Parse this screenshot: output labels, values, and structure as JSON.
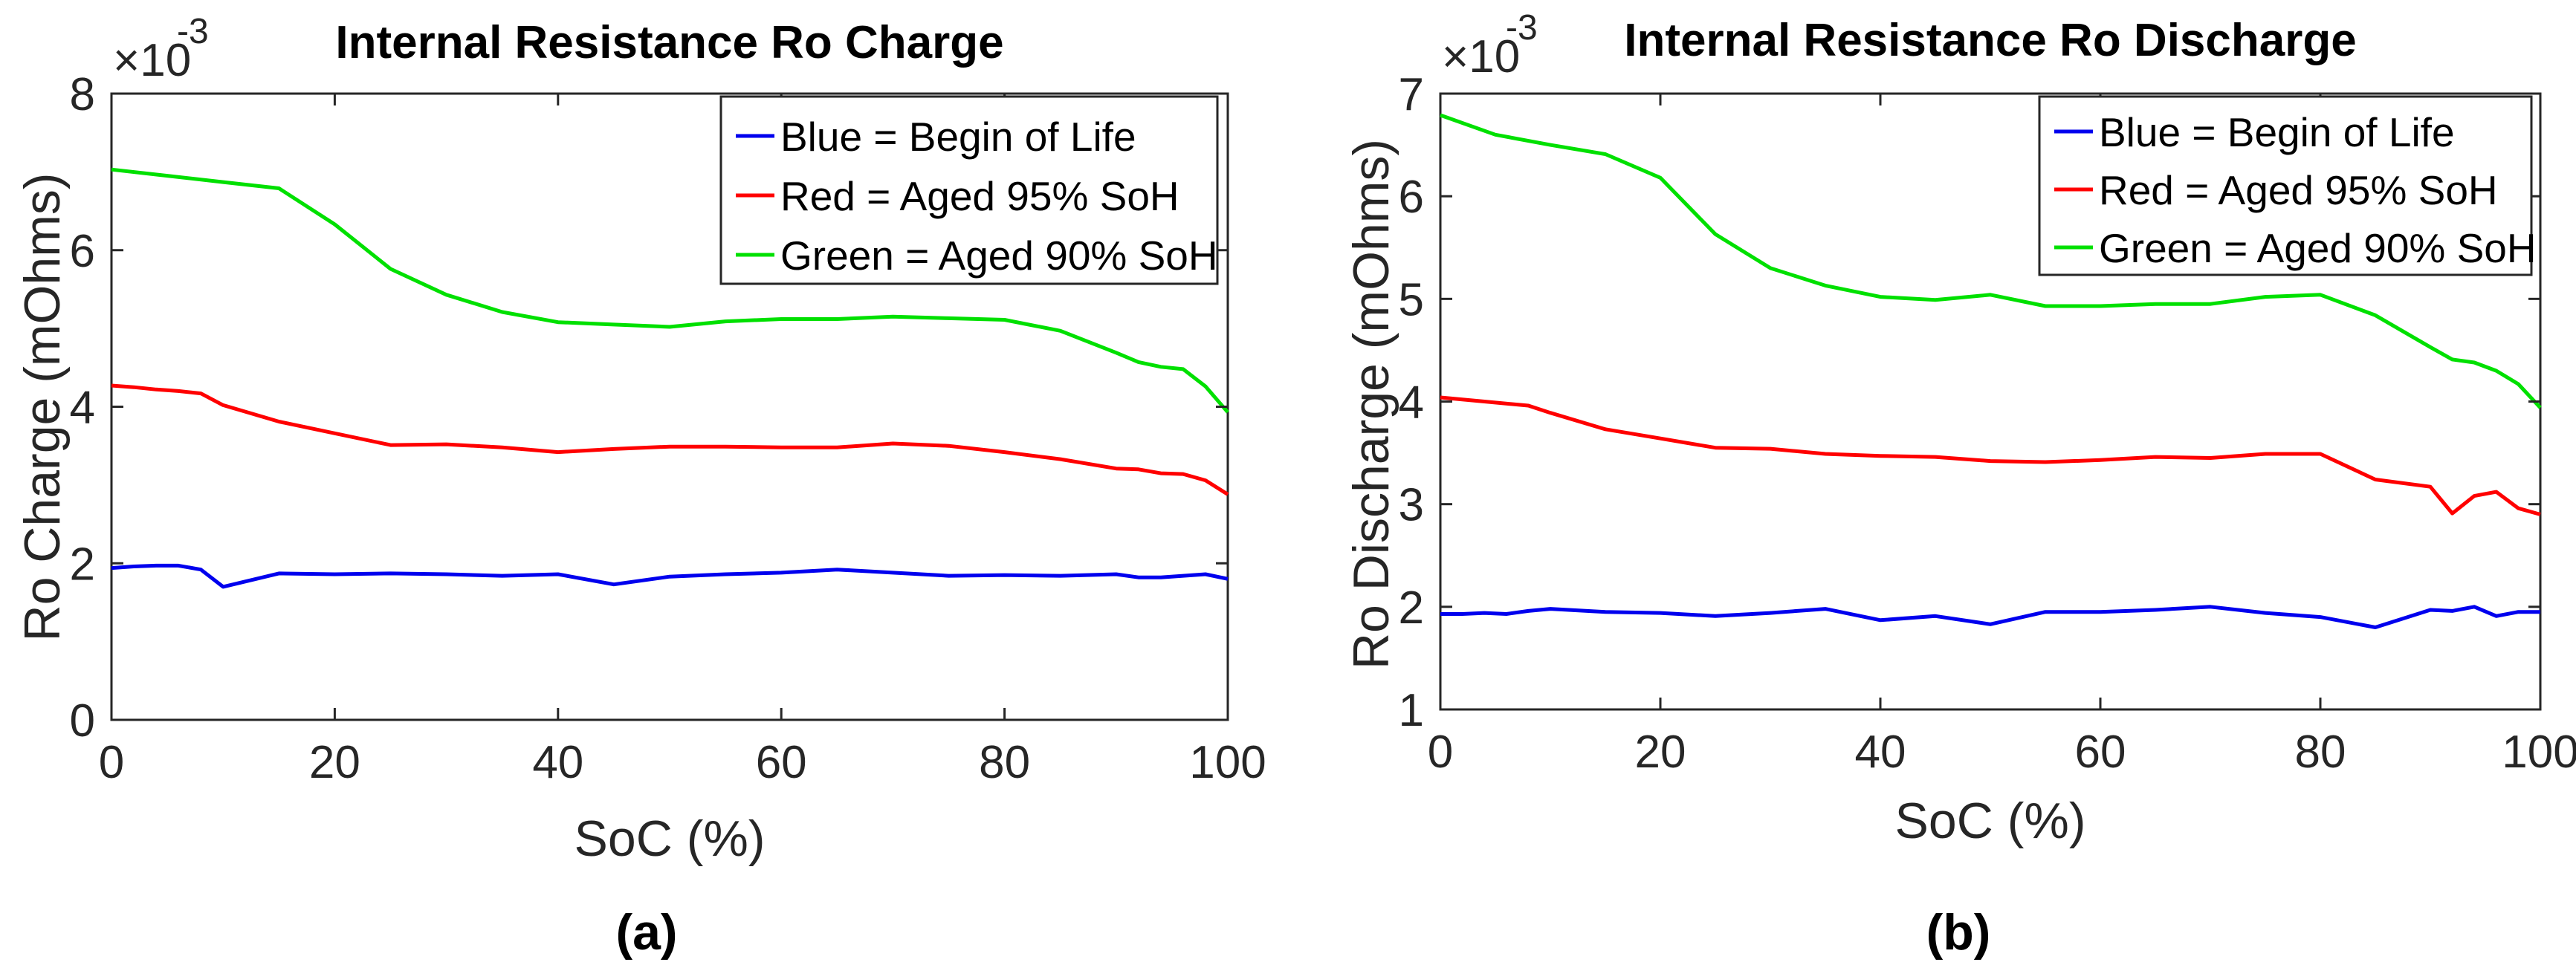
{
  "chart_data": [
    {
      "type": "line",
      "panel_label": "(a)",
      "title": "Internal Resistance Ro Charge",
      "xlabel": "SoC (%)",
      "ylabel": "Ro Charge (mOhms)",
      "y_multiplier": "×10",
      "y_exponent": "-3",
      "xlim": [
        0,
        100
      ],
      "ylim": [
        0,
        8
      ],
      "xticks": [
        0,
        20,
        40,
        60,
        80,
        100
      ],
      "yticks": [
        0,
        2,
        4,
        6,
        8
      ],
      "legend_position": "top-right",
      "series": [
        {
          "name": "Blue = Begin of Life",
          "color": "#0000ee",
          "x": [
            0,
            2,
            4,
            6,
            8,
            10,
            15,
            20,
            25,
            30,
            35,
            40,
            45,
            50,
            55,
            60,
            65,
            70,
            75,
            80,
            85,
            90,
            92,
            94,
            96,
            98,
            100
          ],
          "y": [
            1.94,
            1.96,
            1.97,
            1.97,
            1.92,
            1.7,
            1.87,
            1.86,
            1.87,
            1.86,
            1.84,
            1.86,
            1.73,
            1.83,
            1.86,
            1.88,
            1.92,
            1.88,
            1.84,
            1.85,
            1.84,
            1.86,
            1.82,
            1.82,
            1.84,
            1.86,
            1.8
          ]
        },
        {
          "name": "Red = Aged 95% SoH",
          "color": "#ff0000",
          "x": [
            0,
            2,
            4,
            6,
            8,
            10,
            15,
            20,
            25,
            30,
            35,
            40,
            45,
            50,
            55,
            60,
            65,
            70,
            75,
            80,
            85,
            90,
            92,
            94,
            96,
            98,
            100
          ],
          "y": [
            4.27,
            4.25,
            4.22,
            4.2,
            4.17,
            4.02,
            3.81,
            3.66,
            3.51,
            3.52,
            3.48,
            3.42,
            3.46,
            3.49,
            3.49,
            3.48,
            3.48,
            3.53,
            3.5,
            3.42,
            3.33,
            3.21,
            3.2,
            3.15,
            3.14,
            3.06,
            2.88
          ]
        },
        {
          "name": "Green = Aged 90% SoH",
          "color": "#00e000",
          "x": [
            0,
            5,
            10,
            15,
            20,
            25,
            30,
            35,
            40,
            45,
            50,
            55,
            60,
            65,
            70,
            75,
            80,
            85,
            90,
            92,
            94,
            96,
            98,
            100
          ],
          "y": [
            7.03,
            6.95,
            6.87,
            6.79,
            6.33,
            5.76,
            5.43,
            5.21,
            5.08,
            5.05,
            5.02,
            5.09,
            5.12,
            5.12,
            5.15,
            5.13,
            5.11,
            4.97,
            4.69,
            4.57,
            4.51,
            4.48,
            4.26,
            3.93
          ]
        }
      ]
    },
    {
      "type": "line",
      "panel_label": "(b)",
      "title": "Internal Resistance Ro Discharge",
      "xlabel": "SoC (%)",
      "ylabel": "Ro Discharge (mOhms)",
      "y_multiplier": "×10",
      "y_exponent": "-3",
      "xlim": [
        0,
        100
      ],
      "ylim": [
        1,
        7
      ],
      "xticks": [
        0,
        20,
        40,
        60,
        80,
        100
      ],
      "yticks": [
        1,
        2,
        3,
        4,
        5,
        6,
        7
      ],
      "legend_position": "top-right",
      "series": [
        {
          "name": "Blue = Begin of Life",
          "color": "#0000ee",
          "x": [
            0,
            2,
            4,
            6,
            8,
            10,
            15,
            20,
            25,
            30,
            35,
            40,
            45,
            50,
            55,
            60,
            65,
            70,
            75,
            80,
            85,
            90,
            92,
            94,
            96,
            98,
            100
          ],
          "y": [
            1.93,
            1.93,
            1.94,
            1.93,
            1.96,
            1.98,
            1.95,
            1.94,
            1.91,
            1.94,
            1.98,
            1.87,
            1.91,
            1.83,
            1.95,
            1.95,
            1.97,
            2.0,
            1.94,
            1.9,
            1.8,
            1.97,
            1.96,
            2.0,
            1.91,
            1.95,
            1.95
          ]
        },
        {
          "name": "Red = Aged 95% SoH",
          "color": "#ff0000",
          "x": [
            0,
            4,
            8,
            10,
            15,
            20,
            25,
            30,
            35,
            40,
            45,
            50,
            55,
            60,
            65,
            70,
            75,
            80,
            85,
            90,
            92,
            94,
            96,
            98,
            100
          ],
          "y": [
            4.04,
            4.0,
            3.96,
            3.89,
            3.73,
            3.64,
            3.55,
            3.54,
            3.49,
            3.47,
            3.46,
            3.42,
            3.41,
            3.43,
            3.46,
            3.45,
            3.49,
            3.49,
            3.24,
            3.17,
            2.91,
            3.08,
            3.12,
            2.96,
            2.9
          ]
        },
        {
          "name": "Green = Aged 90% SoH",
          "color": "#00e000",
          "x": [
            0,
            5,
            10,
            15,
            20,
            25,
            30,
            35,
            40,
            45,
            50,
            55,
            60,
            65,
            70,
            75,
            80,
            85,
            90,
            92,
            94,
            96,
            98,
            100
          ],
          "y": [
            6.79,
            6.6,
            6.5,
            6.41,
            6.18,
            5.63,
            5.3,
            5.13,
            5.02,
            4.99,
            5.04,
            4.93,
            4.93,
            4.95,
            4.95,
            5.02,
            5.04,
            4.84,
            4.53,
            4.41,
            4.38,
            4.3,
            4.17,
            3.94
          ]
        }
      ]
    }
  ]
}
